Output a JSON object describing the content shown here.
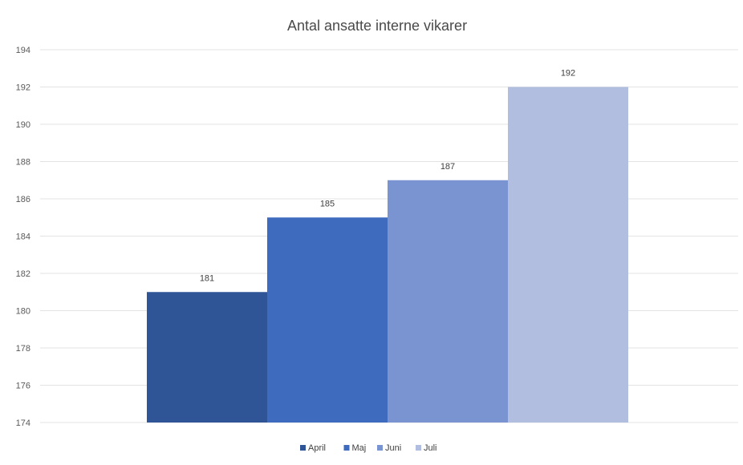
{
  "chart_data": {
    "type": "bar",
    "title": "Antal ansatte interne vikarer",
    "xlabel": "",
    "ylabel": "",
    "ylim": [
      174,
      194
    ],
    "yticks": [
      174,
      176,
      178,
      180,
      182,
      184,
      186,
      188,
      190,
      192,
      194
    ],
    "grid": true,
    "legend_position": "bottom",
    "series": [
      {
        "name": "April",
        "value": 181,
        "color": "#2f5597"
      },
      {
        "name": "Maj",
        "value": 185,
        "color": "#3e6bbd"
      },
      {
        "name": "Juni",
        "value": 187,
        "color": "#7a93d1"
      },
      {
        "name": "Juli",
        "value": 192,
        "color": "#b2bedf"
      }
    ]
  }
}
